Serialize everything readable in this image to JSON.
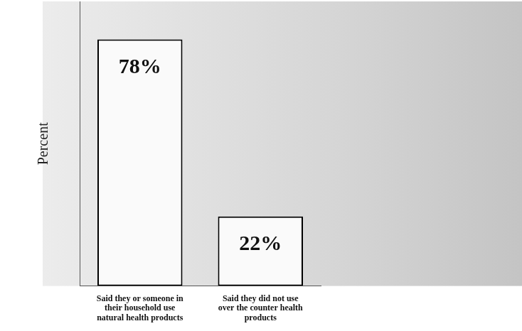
{
  "chart_data": {
    "type": "bar",
    "ylabel": "Percent",
    "categories": [
      "Said they or someone in their household use natural health products",
      "Said they did not use over the counter health products"
    ],
    "values": [
      78,
      22
    ],
    "value_labels": [
      "78%",
      "22%"
    ],
    "color": "#fafafa",
    "ylim": [
      0,
      90
    ],
    "yticks": [],
    "grid": false,
    "data_labels": true,
    "tick_labels": "x"
  }
}
